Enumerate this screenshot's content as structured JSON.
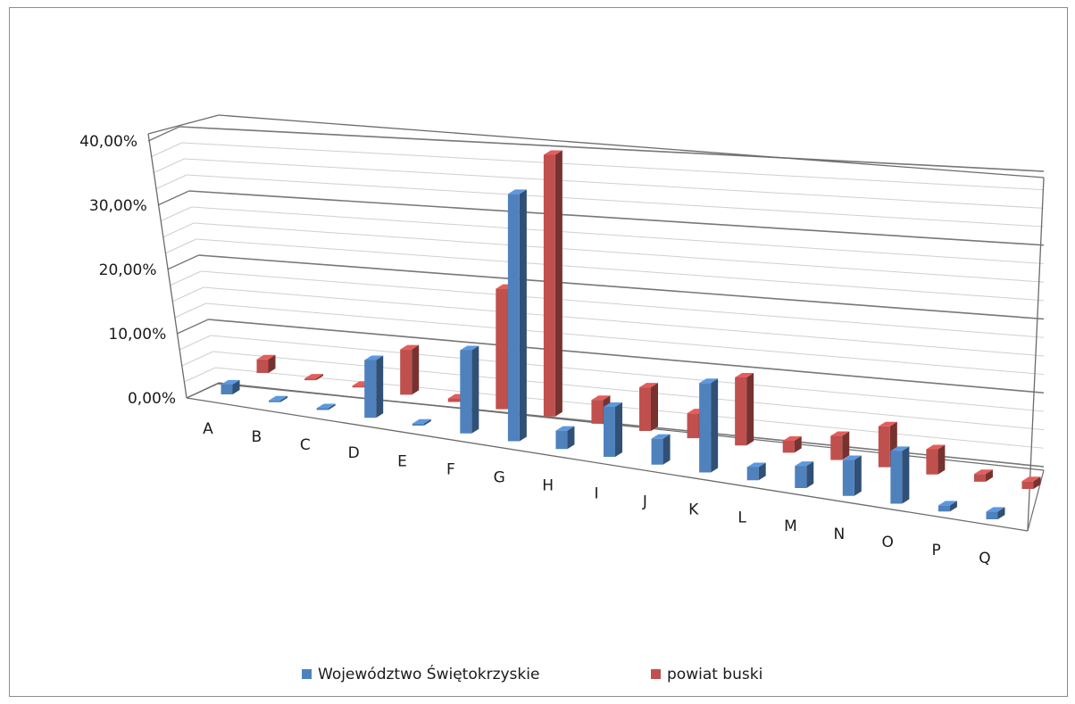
{
  "chart_data": {
    "type": "bar",
    "categories": [
      "A",
      "B",
      "C",
      "D",
      "E",
      "F",
      "G",
      "H",
      "I",
      "J",
      "K",
      "L",
      "M",
      "N",
      "O",
      "P",
      "Q"
    ],
    "series": [
      {
        "name": "Województwo Świętokrzyskie",
        "color": "#4f81bd",
        "values": [
          1.5,
          0.1,
          0.2,
          8.5,
          0.3,
          12.0,
          35.3,
          2.6,
          7.0,
          3.6,
          12.3,
          1.8,
          3.0,
          4.8,
          7.0,
          0.8,
          1.0
        ]
      },
      {
        "name": "powiat buski",
        "color": "#c0504d",
        "values": [
          2.0,
          0.1,
          0.15,
          6.5,
          0.5,
          17.0,
          36.6,
          3.3,
          6.0,
          3.4,
          9.2,
          1.6,
          3.2,
          5.4,
          3.3,
          1.0,
          1.0
        ]
      }
    ],
    "ylim": [
      0,
      40
    ],
    "yticks": [
      "0,00%",
      "10,00%",
      "20,00%",
      "30,00%",
      "40,00%"
    ],
    "grid": true,
    "legend": "bottom"
  }
}
